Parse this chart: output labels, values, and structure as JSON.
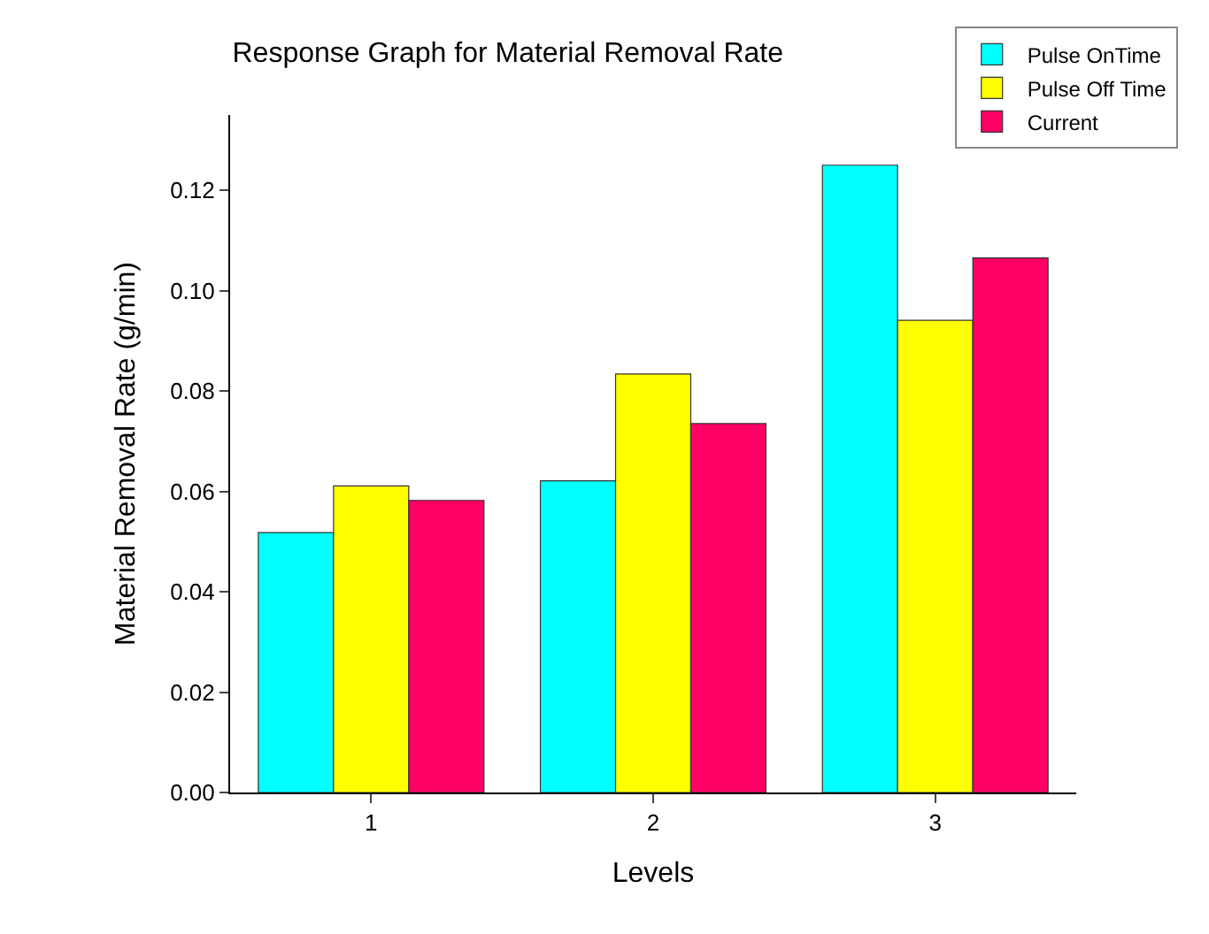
{
  "chart_data": {
    "type": "bar",
    "title": "Response Graph for Material Removal Rate",
    "xlabel": "Levels",
    "ylabel": "Material Removal Rate (g/min)",
    "categories": [
      "1",
      "2",
      "3"
    ],
    "series": [
      {
        "name": "Pulse OnTime",
        "color": "#00ffff",
        "values": [
          0.0518,
          0.0621,
          0.125
        ]
      },
      {
        "name": "Pulse Off Time",
        "color": "#ffff00",
        "values": [
          0.0611,
          0.0834,
          0.0941
        ]
      },
      {
        "name": "Current",
        "color": "#ff0066",
        "values": [
          0.0582,
          0.0735,
          0.1065
        ]
      }
    ],
    "ylim": [
      0,
      0.135
    ],
    "yticks": [
      {
        "value": 0,
        "label": "0.00"
      },
      {
        "value": 0.02,
        "label": "0.02"
      },
      {
        "value": 0.04,
        "label": "0.04"
      },
      {
        "value": 0.06,
        "label": "0.06"
      },
      {
        "value": 0.08,
        "label": "0.08"
      },
      {
        "value": 0.1,
        "label": "0.10"
      },
      {
        "value": 0.12,
        "label": "0.12"
      }
    ],
    "legend": "top right"
  }
}
